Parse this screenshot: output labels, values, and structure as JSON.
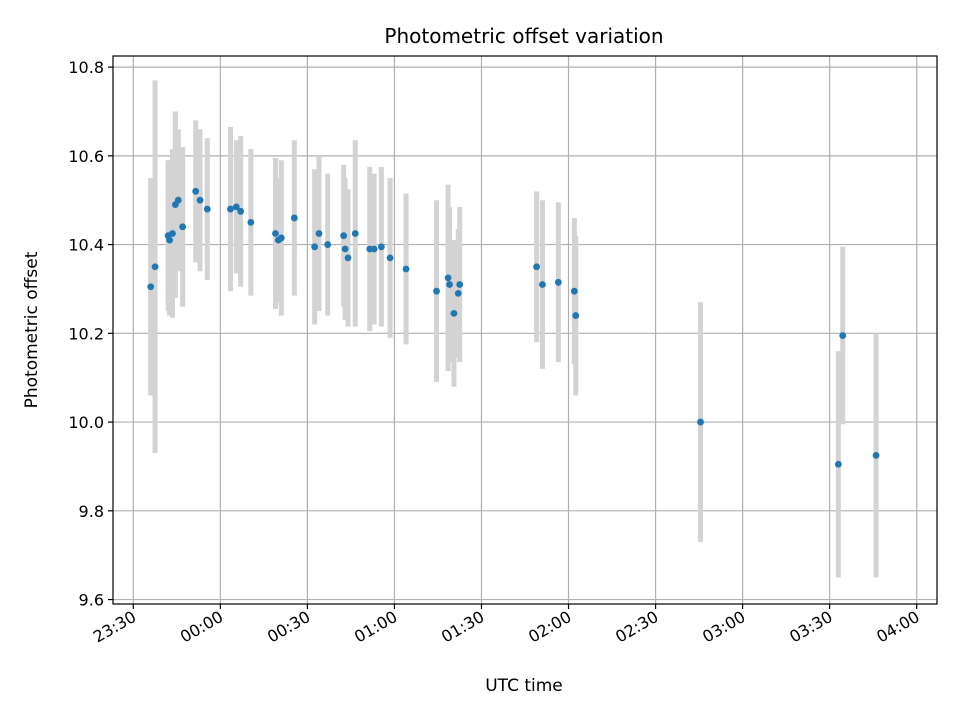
{
  "chart_data": {
    "type": "scatter",
    "title": "Photometric offset variation",
    "xlabel": "UTC time",
    "ylabel": "Photometric offset",
    "grid": true,
    "x_unit": "minutes_after_midnight",
    "xlim": [
      -37,
      247
    ],
    "ylim": [
      9.59,
      10.825
    ],
    "x_ticks": [
      {
        "value": -30,
        "label": "23:30"
      },
      {
        "value": 0,
        "label": "00:00"
      },
      {
        "value": 30,
        "label": "00:30"
      },
      {
        "value": 60,
        "label": "01:00"
      },
      {
        "value": 90,
        "label": "01:30"
      },
      {
        "value": 120,
        "label": "02:00"
      },
      {
        "value": 150,
        "label": "02:30"
      },
      {
        "value": 180,
        "label": "03:00"
      },
      {
        "value": 210,
        "label": "03:30"
      },
      {
        "value": 240,
        "label": "04:00"
      }
    ],
    "y_ticks": [
      {
        "value": 9.6,
        "label": "9.6"
      },
      {
        "value": 9.8,
        "label": "9.8"
      },
      {
        "value": 10.0,
        "label": "10.0"
      },
      {
        "value": 10.2,
        "label": "10.2"
      },
      {
        "value": 10.4,
        "label": "10.4"
      },
      {
        "value": 10.6,
        "label": "10.6"
      },
      {
        "value": 10.8,
        "label": "10.8"
      }
    ],
    "marker_color": "#1f77b4",
    "errorbar_color": "#d3d3d3",
    "points": [
      {
        "x": -24,
        "y": 10.305,
        "err": 0.245
      },
      {
        "x": -22.5,
        "y": 10.35,
        "err": 0.42
      },
      {
        "x": -18,
        "y": 10.42,
        "err": 0.17
      },
      {
        "x": -17.5,
        "y": 10.41,
        "err": 0.17
      },
      {
        "x": -16.5,
        "y": 10.425,
        "err": 0.19
      },
      {
        "x": -15.5,
        "y": 10.49,
        "err": 0.21
      },
      {
        "x": -14.5,
        "y": 10.5,
        "err": 0.16
      },
      {
        "x": -13,
        "y": 10.44,
        "err": 0.18
      },
      {
        "x": -8.5,
        "y": 10.52,
        "err": 0.16
      },
      {
        "x": -7,
        "y": 10.5,
        "err": 0.16
      },
      {
        "x": -4.5,
        "y": 10.48,
        "err": 0.16
      },
      {
        "x": 3.5,
        "y": 10.48,
        "err": 0.185
      },
      {
        "x": 5.5,
        "y": 10.485,
        "err": 0.15
      },
      {
        "x": 7,
        "y": 10.475,
        "err": 0.17
      },
      {
        "x": 10.5,
        "y": 10.45,
        "err": 0.165
      },
      {
        "x": 19,
        "y": 10.425,
        "err": 0.17
      },
      {
        "x": 20,
        "y": 10.41,
        "err": 0.14
      },
      {
        "x": 21,
        "y": 10.415,
        "err": 0.175
      },
      {
        "x": 25.5,
        "y": 10.46,
        "err": 0.175
      },
      {
        "x": 32.5,
        "y": 10.395,
        "err": 0.175
      },
      {
        "x": 34,
        "y": 10.425,
        "err": 0.175
      },
      {
        "x": 37,
        "y": 10.4,
        "err": 0.16
      },
      {
        "x": 42.5,
        "y": 10.42,
        "err": 0.16
      },
      {
        "x": 43,
        "y": 10.39,
        "err": 0.16
      },
      {
        "x": 44,
        "y": 10.37,
        "err": 0.155
      },
      {
        "x": 46.5,
        "y": 10.425,
        "err": 0.21
      },
      {
        "x": 51.5,
        "y": 10.39,
        "err": 0.185
      },
      {
        "x": 53,
        "y": 10.39,
        "err": 0.17
      },
      {
        "x": 55.5,
        "y": 10.395,
        "err": 0.18
      },
      {
        "x": 58.5,
        "y": 10.37,
        "err": 0.18
      },
      {
        "x": 64,
        "y": 10.345,
        "err": 0.17
      },
      {
        "x": 74.5,
        "y": 10.295,
        "err": 0.205
      },
      {
        "x": 78.5,
        "y": 10.325,
        "err": 0.21
      },
      {
        "x": 79,
        "y": 10.31,
        "err": 0.175
      },
      {
        "x": 80.5,
        "y": 10.245,
        "err": 0.165
      },
      {
        "x": 82,
        "y": 10.29,
        "err": 0.145
      },
      {
        "x": 82.5,
        "y": 10.31,
        "err": 0.175
      },
      {
        "x": 109,
        "y": 10.35,
        "err": 0.17
      },
      {
        "x": 111,
        "y": 10.31,
        "err": 0.19
      },
      {
        "x": 116.5,
        "y": 10.315,
        "err": 0.18
      },
      {
        "x": 122,
        "y": 10.295,
        "err": 0.165
      },
      {
        "x": 122.5,
        "y": 10.24,
        "err": 0.18
      },
      {
        "x": 165.5,
        "y": 10.0,
        "err": 0.27
      },
      {
        "x": 213,
        "y": 9.905,
        "err": 0.255
      },
      {
        "x": 214.5,
        "y": 10.195,
        "err": 0.2
      },
      {
        "x": 226,
        "y": 9.925,
        "err": 0.275
      }
    ]
  }
}
